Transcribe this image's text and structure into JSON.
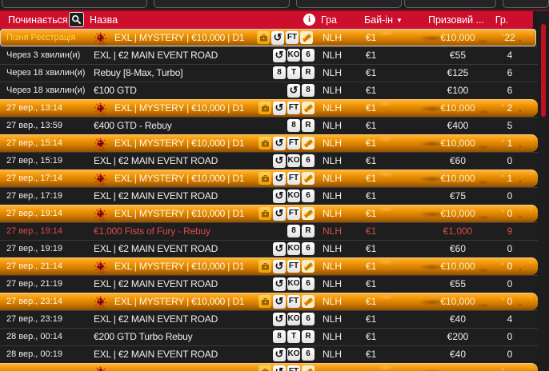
{
  "header": {
    "col_starts": "Починається",
    "col_name": "Назва",
    "col_game": "Гра",
    "col_buyin": "Бай-ін",
    "sort_arrow": "▼",
    "col_prize": "Призовий ...",
    "col_players": "Гр.",
    "info_glyph": "i"
  },
  "colors": {
    "header_red": "#ce0e2d",
    "row_dark": "#1e1e1e",
    "mystery_orange_top": "#ffb944",
    "mystery_orange_bottom": "#935000",
    "alert_red": "#db4b4b",
    "late_reg_gold": "#ffd24a",
    "scrollbar_thumb": "#c11026"
  },
  "badge_labels": {
    "FT": "FT",
    "KO": "KO",
    "6": "6",
    "8": "8",
    "T": "T",
    "R": "R",
    "reentry": "↺",
    "bag": "",
    "ticket": ""
  },
  "rows": [
    {
      "style": "mystery",
      "selected": true,
      "alert": false,
      "time": "Пізня Реєстрація",
      "name": "EXL | MYSTERY | €10,000 | D1",
      "badges": [
        "bag",
        "reentry",
        "FT",
        "ticket"
      ],
      "game": "NLH",
      "buyin": "€1",
      "prize": "€10,000",
      "players": "22"
    },
    {
      "style": "dark",
      "selected": false,
      "alert": false,
      "time": "Через 3 хвилин(и)",
      "name": "EXL | €2 MAIN EVENT ROAD",
      "badges": [
        "reentry",
        "KO",
        "6"
      ],
      "game": "NLH",
      "buyin": "€1",
      "prize": "€55",
      "players": "4"
    },
    {
      "style": "dark",
      "selected": false,
      "alert": false,
      "time": "Через 18 хвилин(и)",
      "name": "Rebuy [8-Max, Turbo]",
      "badges": [
        "8",
        "T",
        "R"
      ],
      "game": "NLH",
      "buyin": "€1",
      "prize": "€125",
      "players": "6"
    },
    {
      "style": "dark",
      "selected": false,
      "alert": false,
      "time": "Через 18 хвилин(и)",
      "name": "€100 GTD",
      "badges": [
        "reentry",
        "8"
      ],
      "game": "NLH",
      "buyin": "€1",
      "prize": "€100",
      "players": "6"
    },
    {
      "style": "mystery",
      "selected": false,
      "alert": false,
      "time": "27 вер., 13:14",
      "name": "EXL | MYSTERY | €10,000 | D1",
      "badges": [
        "bag",
        "reentry",
        "FT",
        "ticket"
      ],
      "game": "NLH",
      "buyin": "€1",
      "prize": "€10,000",
      "players": "2"
    },
    {
      "style": "dark",
      "selected": false,
      "alert": false,
      "time": "27 вер., 13:59",
      "name": "€400 GTD - Rebuy",
      "badges": [
        "8",
        "R"
      ],
      "game": "NLH",
      "buyin": "€1",
      "prize": "€400",
      "players": "5"
    },
    {
      "style": "mystery",
      "selected": false,
      "alert": false,
      "time": "27 вер., 15:14",
      "name": "EXL | MYSTERY | €10,000 | D1",
      "badges": [
        "bag",
        "reentry",
        "FT",
        "ticket"
      ],
      "game": "NLH",
      "buyin": "€1",
      "prize": "€10,000",
      "players": "1"
    },
    {
      "style": "dark",
      "selected": false,
      "alert": false,
      "time": "27 вер., 15:19",
      "name": "EXL | €2 MAIN EVENT ROAD",
      "badges": [
        "reentry",
        "KO",
        "6"
      ],
      "game": "NLH",
      "buyin": "€1",
      "prize": "€60",
      "players": "0"
    },
    {
      "style": "mystery",
      "selected": false,
      "alert": false,
      "time": "27 вер., 17:14",
      "name": "EXL | MYSTERY | €10,000 | D1",
      "badges": [
        "bag",
        "reentry",
        "FT",
        "ticket"
      ],
      "game": "NLH",
      "buyin": "€1",
      "prize": "€10,000",
      "players": "1"
    },
    {
      "style": "dark",
      "selected": false,
      "alert": false,
      "time": "27 вер., 17:19",
      "name": "EXL | €2 MAIN EVENT ROAD",
      "badges": [
        "reentry",
        "KO",
        "6"
      ],
      "game": "NLH",
      "buyin": "€1",
      "prize": "€75",
      "players": "0"
    },
    {
      "style": "mystery",
      "selected": false,
      "alert": false,
      "time": "27 вер., 19:14",
      "name": "EXL | MYSTERY | €10,000 | D1",
      "badges": [
        "bag",
        "reentry",
        "FT",
        "ticket"
      ],
      "game": "NLH",
      "buyin": "€1",
      "prize": "€10,000",
      "players": "0"
    },
    {
      "style": "dark",
      "selected": false,
      "alert": true,
      "time": "27 вер., 19:14",
      "name": "€1,000 Fists of Fury - Rebuy",
      "badges": [
        "8",
        "R"
      ],
      "game": "NLH",
      "buyin": "€1",
      "prize": "€1,000",
      "players": "9"
    },
    {
      "style": "dark",
      "selected": false,
      "alert": false,
      "time": "27 вер., 19:19",
      "name": "EXL | €2 MAIN EVENT ROAD",
      "badges": [
        "reentry",
        "KO",
        "6"
      ],
      "game": "NLH",
      "buyin": "€1",
      "prize": "€60",
      "players": "0"
    },
    {
      "style": "mystery",
      "selected": false,
      "alert": false,
      "time": "27 вер., 21:14",
      "name": "EXL | MYSTERY | €10,000 | D1",
      "badges": [
        "bag",
        "reentry",
        "FT",
        "ticket"
      ],
      "game": "NLH",
      "buyin": "€1",
      "prize": "€10,000",
      "players": "0"
    },
    {
      "style": "dark",
      "selected": false,
      "alert": false,
      "time": "27 вер., 21:19",
      "name": "EXL | €2 MAIN EVENT ROAD",
      "badges": [
        "reentry",
        "KO",
        "6"
      ],
      "game": "NLH",
      "buyin": "€1",
      "prize": "€55",
      "players": "0"
    },
    {
      "style": "mystery",
      "selected": false,
      "alert": false,
      "time": "27 вер., 23:14",
      "name": "EXL | MYSTERY | €10,000 | D1",
      "badges": [
        "bag",
        "reentry",
        "FT",
        "ticket"
      ],
      "game": "NLH",
      "buyin": "€1",
      "prize": "€10,000",
      "players": "0"
    },
    {
      "style": "dark",
      "selected": false,
      "alert": false,
      "time": "27 вер., 23:19",
      "name": "EXL | €2 MAIN EVENT ROAD",
      "badges": [
        "reentry",
        "KO",
        "6"
      ],
      "game": "NLH",
      "buyin": "€1",
      "prize": "€40",
      "players": "4"
    },
    {
      "style": "dark",
      "selected": false,
      "alert": false,
      "time": "28 вер., 00:14",
      "name": "€200 GTD Turbo Rebuy",
      "badges": [
        "8",
        "T",
        "R"
      ],
      "game": "NLH",
      "buyin": "€1",
      "prize": "€200",
      "players": "0"
    },
    {
      "style": "dark",
      "selected": false,
      "alert": false,
      "time": "28 вер., 00:19",
      "name": "EXL | €2 MAIN EVENT ROAD",
      "badges": [
        "reentry",
        "KO",
        "6"
      ],
      "game": "NLH",
      "buyin": "€1",
      "prize": "€40",
      "players": "0"
    },
    {
      "style": "mystery",
      "selected": false,
      "alert": false,
      "time": "",
      "name": "",
      "badges": [
        "bag",
        "reentry",
        "FT",
        "ticket"
      ],
      "game": "",
      "buyin": "",
      "prize": "",
      "players": ""
    }
  ]
}
